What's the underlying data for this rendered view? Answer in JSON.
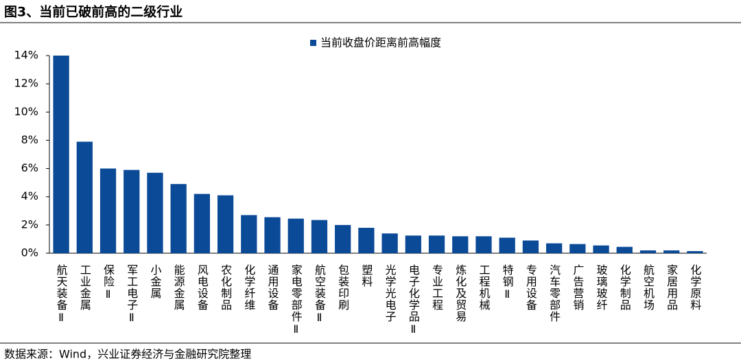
{
  "chart_data": {
    "type": "bar",
    "title": "图3、当前已破前高的二级行业",
    "source": "数据来源：Wind，兴业证券经济与金融研究院整理",
    "categories": [
      "航天装备Ⅱ",
      "工业金属",
      "保险Ⅱ",
      "军工电子Ⅱ",
      "小金属",
      "能源金属",
      "风电设备",
      "农化制品",
      "化学纤维",
      "通用设备",
      "家电零部件Ⅱ",
      "航空装备Ⅱ",
      "包装印刷",
      "塑料",
      "光学光电子",
      "电子化学品Ⅱ",
      "专业工程",
      "炼化及贸易",
      "工程机械",
      "特钢Ⅱ",
      "专用设备",
      "汽车零部件",
      "广告营销",
      "玻璃玻纤",
      "化学制品",
      "航空机场",
      "家居用品",
      "化学原料"
    ],
    "series": [
      {
        "name": "当前收盘价距离前高幅度",
        "color": "#0b4a97",
        "values": [
          14.0,
          7.9,
          6.0,
          5.9,
          5.7,
          4.9,
          4.2,
          4.1,
          2.7,
          2.55,
          2.45,
          2.35,
          2.0,
          1.8,
          1.4,
          1.25,
          1.25,
          1.2,
          1.2,
          1.1,
          0.9,
          0.7,
          0.65,
          0.55,
          0.45,
          0.2,
          0.2,
          0.15
        ]
      }
    ],
    "ylim": [
      0,
      14
    ],
    "yticks": [
      {
        "value": 0,
        "label": "0%"
      },
      {
        "value": 2,
        "label": "2%"
      },
      {
        "value": 4,
        "label": "4%"
      },
      {
        "value": 6,
        "label": "6%"
      },
      {
        "value": 8,
        "label": "8%"
      },
      {
        "value": 10,
        "label": "10%"
      },
      {
        "value": 12,
        "label": "12%"
      },
      {
        "value": 14,
        "label": "14%"
      }
    ]
  }
}
